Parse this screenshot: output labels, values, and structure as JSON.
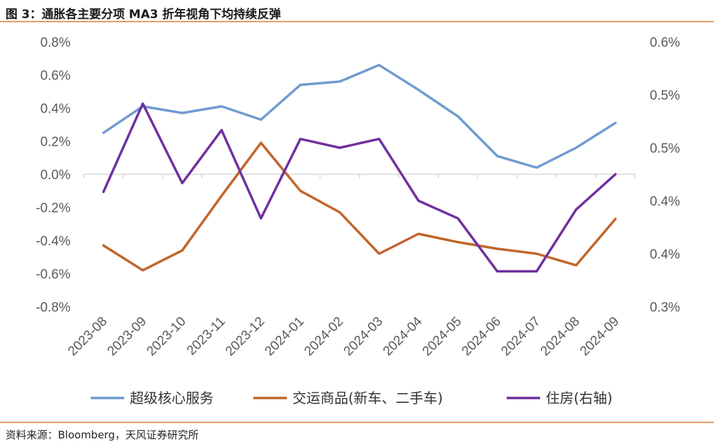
{
  "title": "图 3：通胀各主要分项 MA3 折年视角下均持续反弹",
  "source": "资料来源：Bloomberg，天风证券研究所",
  "colors": {
    "accent_line": "#e07b2c",
    "grid": "#d9d9d9",
    "axis": "#d9d9d9"
  },
  "chart_data": {
    "type": "line",
    "categories": [
      "2023-08",
      "2023-09",
      "2023-10",
      "2023-11",
      "2023-12",
      "2024-01",
      "2024-02",
      "2024-03",
      "2024-04",
      "2024-05",
      "2024-06",
      "2024-07",
      "2024-08",
      "2024-09"
    ],
    "left_axis": {
      "ylim": [
        -0.8,
        0.8
      ],
      "ticks": [
        "0.8%",
        "0.6%",
        "0.4%",
        "0.2%",
        "0.0%",
        "-0.2%",
        "-0.4%",
        "-0.6%",
        "-0.8%"
      ]
    },
    "right_axis": {
      "ylim": [
        0.3,
        0.6
      ],
      "ticks": [
        "0.6%",
        "0.5%",
        "0.5%",
        "0.4%",
        "0.4%",
        "0.3%"
      ]
    },
    "series": [
      {
        "name": "超级核心服务",
        "axis": "left",
        "color": "#6f9bd1",
        "values": [
          0.25,
          0.41,
          0.37,
          0.41,
          0.33,
          0.54,
          0.56,
          0.66,
          0.51,
          0.35,
          0.11,
          0.04,
          0.16,
          0.31
        ]
      },
      {
        "name": "交运商品(新车、二手车)",
        "axis": "left",
        "color": "#c0652a",
        "values": [
          -0.43,
          -0.58,
          -0.46,
          -0.13,
          0.19,
          -0.1,
          -0.23,
          -0.48,
          -0.36,
          -0.41,
          -0.45,
          -0.48,
          -0.55,
          -0.27
        ]
      },
      {
        "name": "住房(右轴)",
        "axis": "right",
        "color": "#7030a0",
        "values": [
          0.43,
          0.53,
          0.44,
          0.5,
          0.4,
          0.49,
          0.48,
          0.49,
          0.42,
          0.4,
          0.34,
          0.34,
          0.41,
          0.45
        ]
      }
    ],
    "legend_position": "bottom"
  }
}
